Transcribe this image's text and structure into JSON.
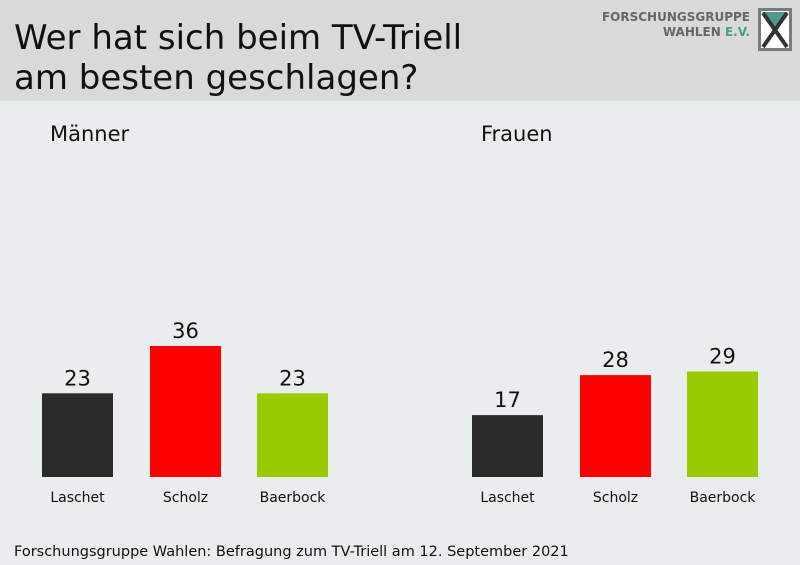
{
  "header": {
    "title_line1": "Wer hat sich beim TV-Triell",
    "title_line2": "am besten geschlagen?",
    "logo_line1": "FORSCHUNGSGRUPPE",
    "logo_line2_a": "WAHLEN",
    "logo_line2_b": "E.V."
  },
  "colors": {
    "header_bg": "#d9d9d9",
    "background": "#eaeded",
    "laschet": "#2b2b2b",
    "scholz": "#ff0000",
    "baerbock": "#99cc00"
  },
  "chart_data": [
    {
      "type": "bar",
      "title": "Männer",
      "categories": [
        "Laschet",
        "Scholz",
        "Baerbock"
      ],
      "values": [
        23,
        36,
        23
      ],
      "ylim": [
        0,
        36
      ]
    },
    {
      "type": "bar",
      "title": "Frauen",
      "categories": [
        "Laschet",
        "Scholz",
        "Baerbock"
      ],
      "values": [
        17,
        28,
        29
      ],
      "ylim": [
        0,
        36
      ]
    }
  ],
  "footer": {
    "source": "Forschungsgruppe  Wahlen: Befragung zum TV-Triell am 12. September 2021"
  }
}
